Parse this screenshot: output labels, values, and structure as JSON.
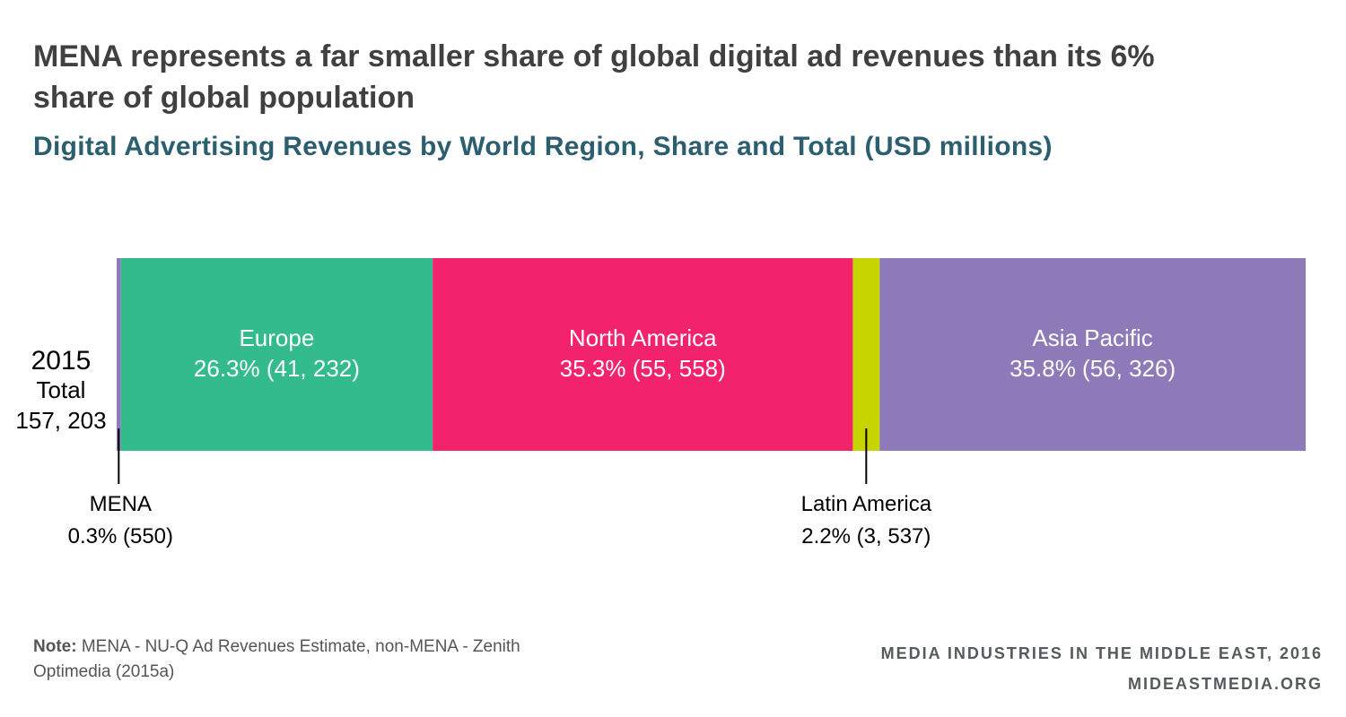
{
  "title": "MENA represents a far smaller share of global digital ad revenues than its 6% share of global population",
  "subtitle": "Digital Advertising Revenues by World Region, Share and Total (USD millions)",
  "chart_data": {
    "type": "bar",
    "orientation": "horizontal",
    "stacked": true,
    "categories": [
      "2015"
    ],
    "row_label": {
      "year": "2015",
      "total_label": "Total",
      "total_value": "157, 203"
    },
    "total": 157203,
    "series": [
      {
        "name": "MENA",
        "value": 550,
        "share": 0.3,
        "label_share": "0.3% (550)",
        "color": "#8e7ab8",
        "label_position": "below"
      },
      {
        "name": "Europe",
        "value": 41232,
        "share": 26.3,
        "label_share": "26.3% (41, 232)",
        "color": "#33bb8d",
        "label_position": "inside"
      },
      {
        "name": "North America",
        "value": 55558,
        "share": 35.3,
        "label_share": "35.3% (55, 558)",
        "color": "#f2236a",
        "label_position": "inside"
      },
      {
        "name": "Latin America",
        "value": 3537,
        "share": 2.2,
        "label_share": "2.2% (3, 537)",
        "color": "#c8d400",
        "label_position": "below"
      },
      {
        "name": "Asia Pacific",
        "value": 56326,
        "share": 35.8,
        "label_share": "35.8% (56, 326)",
        "color": "#8e7ab8",
        "label_position": "inside"
      }
    ]
  },
  "note": {
    "bold": "Note:",
    "text": " MENA - NU-Q Ad Revenues Estimate, non-MENA - Zenith Optimedia (2015a)"
  },
  "source": {
    "line1": "MEDIA INDUSTRIES IN THE MIDDLE EAST, 2016",
    "line2": "MIDEASTMEDIA.ORG"
  }
}
